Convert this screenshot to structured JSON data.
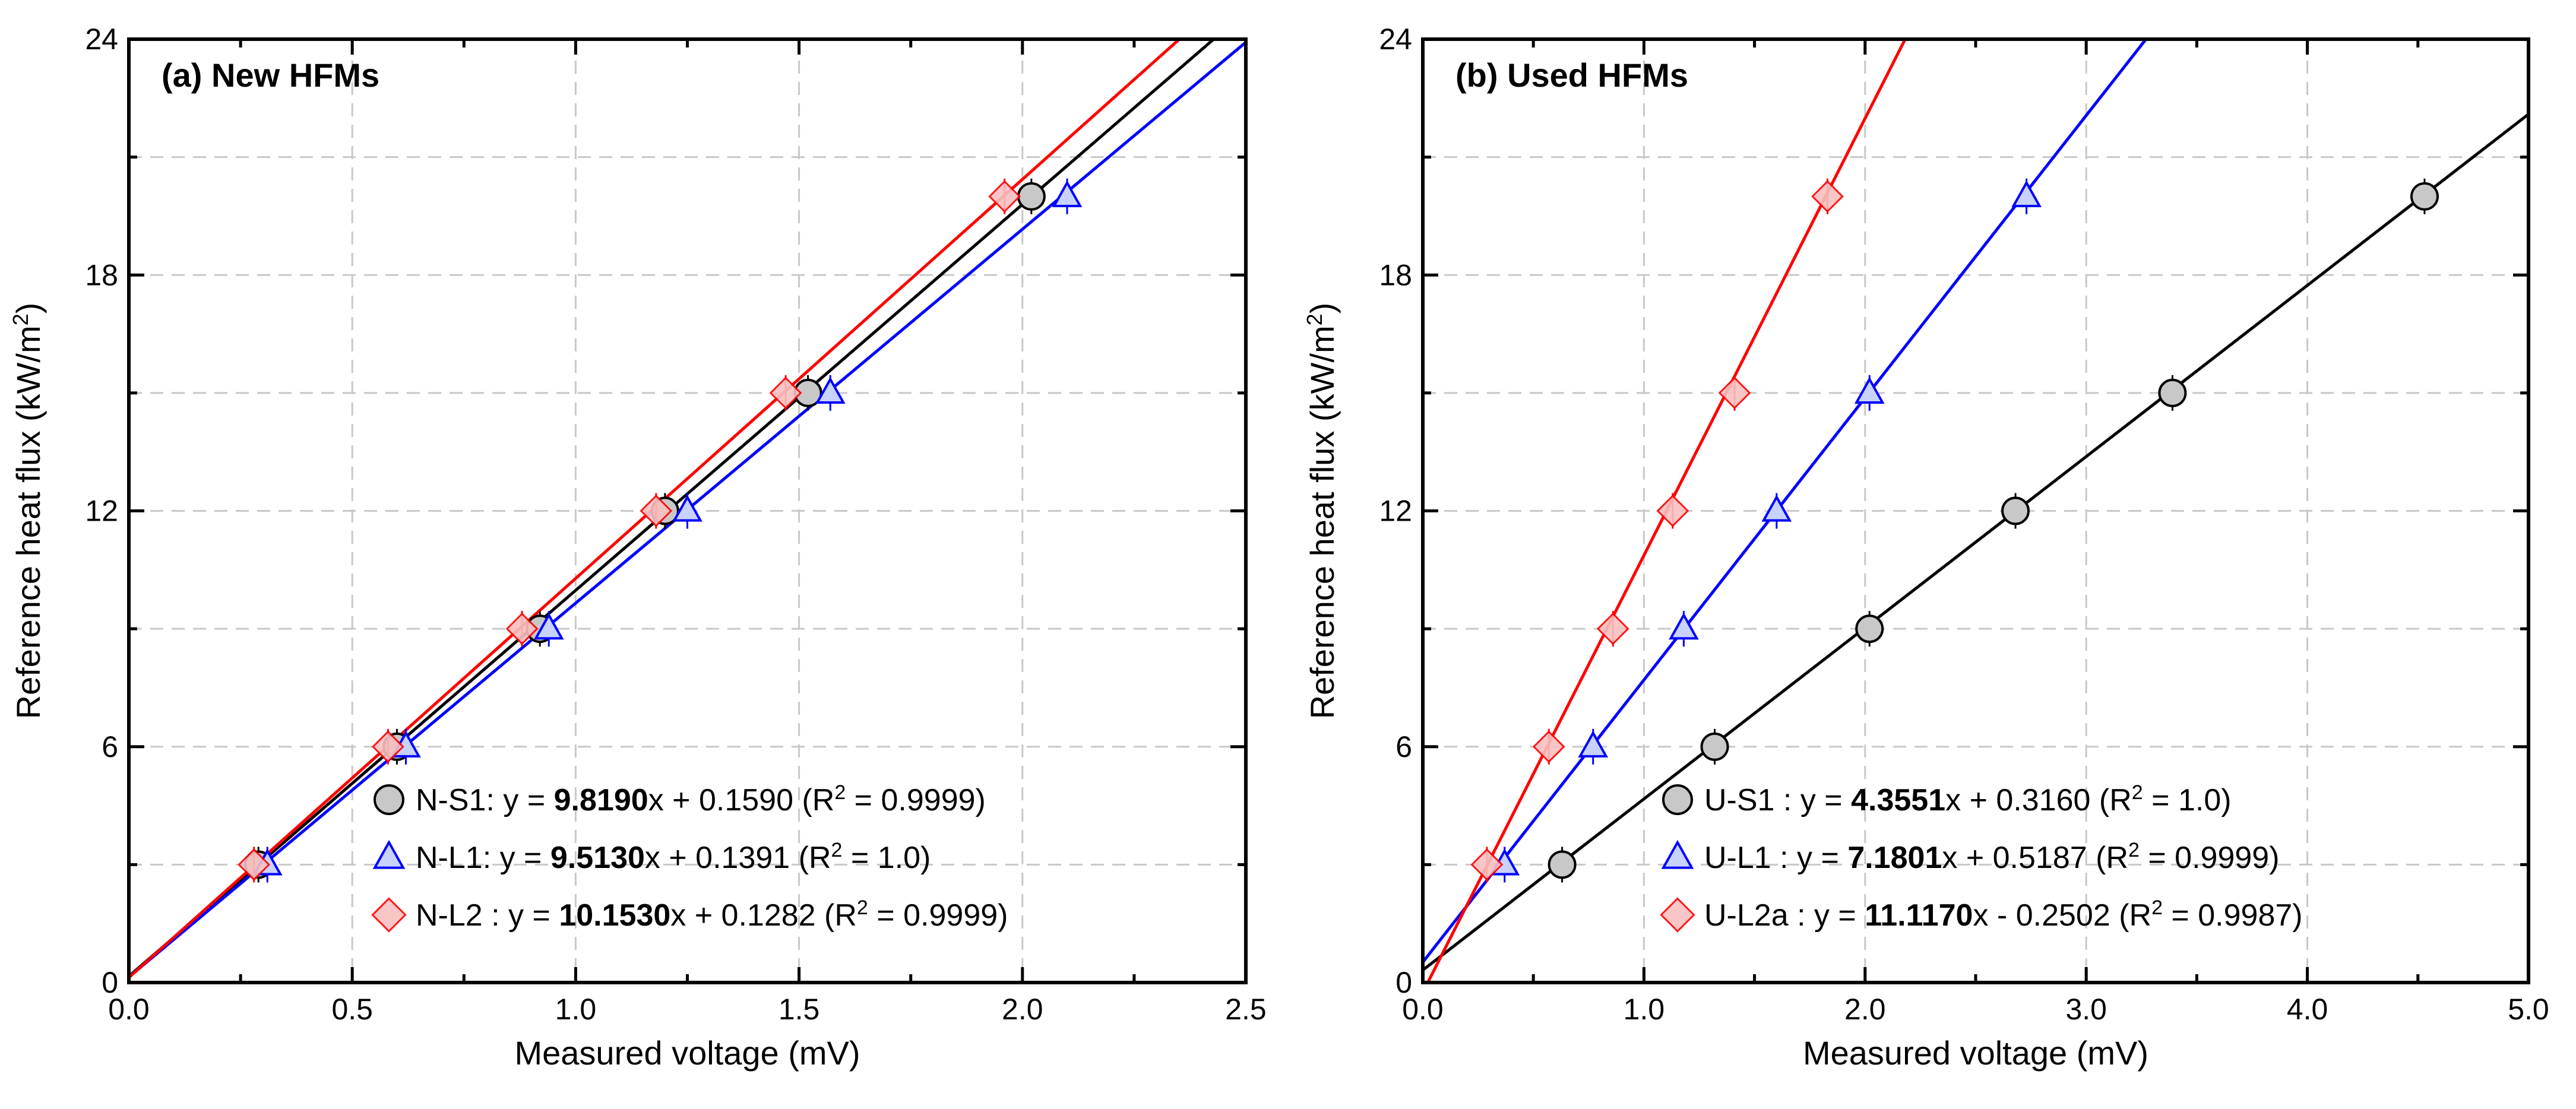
{
  "chart_data": [
    {
      "type": "scatter",
      "title": "(a) New HFMs",
      "xlabel": "Measured voltage (mV)",
      "ylabel": "Reference heat flux (kW/m",
      "ylabel_sup": "2",
      "ylabel_end": ")",
      "xlim": [
        0,
        2.5
      ],
      "ylim": [
        0,
        24
      ],
      "xticks": [
        0,
        0.5,
        1.0,
        1.5,
        2.0,
        2.5
      ],
      "xtick_labels": [
        "0.0",
        "0.5",
        "1.0",
        "1.5",
        "2.0",
        "2.5"
      ],
      "yticks": [
        0,
        6,
        12,
        18,
        24
      ],
      "ytick_labels": [
        "0",
        "6",
        "12",
        "18",
        "24"
      ],
      "grid": true,
      "legend_position": "bottom-right",
      "series": [
        {
          "name": "N-S1",
          "marker": "circle",
          "color": "#000000",
          "fill": "#c8c8c8",
          "x": [
            0.29,
            0.6,
            0.92,
            1.2,
            1.52,
            2.02
          ],
          "y": [
            3,
            6,
            9,
            12,
            15,
            20
          ],
          "fit": {
            "slope": 9.819,
            "intercept": 0.159
          },
          "legend_prefix": ": y = ",
          "legend_slope": "9.8190",
          "legend_rest": "x + 0.1590 (R",
          "legend_r2_sup": "2",
          "legend_r2_value": " = 0.9999)"
        },
        {
          "name": "N-L1",
          "marker": "triangle",
          "color": "#0000ff",
          "fill": "#c8d2ff",
          "x": [
            0.31,
            0.62,
            0.94,
            1.25,
            1.57,
            2.1
          ],
          "y": [
            3,
            6,
            9,
            12,
            15,
            20
          ],
          "fit": {
            "slope": 9.513,
            "intercept": 0.1391
          },
          "legend_prefix": ": y = ",
          "legend_slope": "9.5130",
          "legend_rest": "x + 0.1391 (R",
          "legend_r2_sup": "2",
          "legend_r2_value": " = 1.0)"
        },
        {
          "name": "N-L2",
          "marker": "diamond",
          "color": "#ff0000",
          "fill": "#f8c0c0",
          "x": [
            0.28,
            0.58,
            0.88,
            1.18,
            1.47,
            1.96
          ],
          "y": [
            3,
            6,
            9,
            12,
            15,
            20
          ],
          "fit": {
            "slope": 10.153,
            "intercept": 0.1282
          },
          "legend_prefix": " : y = ",
          "legend_slope": "10.1530",
          "legend_rest": "x + 0.1282 (R",
          "legend_r2_sup": "2",
          "legend_r2_value": " = 0.9999)"
        }
      ]
    },
    {
      "type": "scatter",
      "title": "(b) Used HFMs",
      "xlabel": "Measured voltage (mV)",
      "ylabel": "Reference heat flux (kW/m",
      "ylabel_sup": "2",
      "ylabel_end": ")",
      "xlim": [
        0,
        5.0
      ],
      "ylim": [
        0,
        24
      ],
      "xticks": [
        0,
        1.0,
        2.0,
        3.0,
        4.0,
        5.0
      ],
      "xtick_labels": [
        "0.0",
        "1.0",
        "2.0",
        "3.0",
        "4.0",
        "5.0"
      ],
      "yticks": [
        0,
        6,
        12,
        18,
        24
      ],
      "ytick_labels": [
        "0",
        "6",
        "12",
        "18",
        "24"
      ],
      "grid": true,
      "legend_position": "bottom-right",
      "series": [
        {
          "name": "U-S1",
          "marker": "circle",
          "color": "#000000",
          "fill": "#c8c8c8",
          "x": [
            0.63,
            1.32,
            2.02,
            2.68,
            3.39,
            4.53
          ],
          "y": [
            3,
            6,
            9,
            12,
            15,
            20
          ],
          "fit": {
            "slope": 4.3551,
            "intercept": 0.316
          },
          "legend_prefix": "  : y = ",
          "legend_slope": "4.3551",
          "legend_rest": "x + 0.3160 (R",
          "legend_r2_sup": "2",
          "legend_r2_value": " = 1.0)"
        },
        {
          "name": "U-L1",
          "marker": "triangle",
          "color": "#0000ff",
          "fill": "#c8d2ff",
          "x": [
            0.37,
            0.77,
            1.18,
            1.6,
            2.02,
            2.73
          ],
          "y": [
            3,
            6,
            9,
            12,
            15,
            20
          ],
          "fit": {
            "slope": 7.1801,
            "intercept": 0.5187
          },
          "legend_prefix": "  : y = ",
          "legend_slope": "7.1801",
          "legend_rest": "x + 0.5187 (R",
          "legend_r2_sup": "2",
          "legend_r2_value": " = 0.9999)"
        },
        {
          "name": "U-L2a",
          "marker": "diamond",
          "color": "#ff0000",
          "fill": "#f8c0c0",
          "x": [
            0.29,
            0.57,
            0.86,
            1.13,
            1.41,
            1.83
          ],
          "y": [
            3,
            6,
            9,
            12,
            15,
            20
          ],
          "fit": {
            "slope": 11.117,
            "intercept": -0.2502
          },
          "legend_prefix": " : y = ",
          "legend_slope": "11.1170",
          "legend_rest": "x - 0.2502 (R",
          "legend_r2_sup": "2",
          "legend_r2_value": " = 0.9987)"
        }
      ]
    }
  ]
}
